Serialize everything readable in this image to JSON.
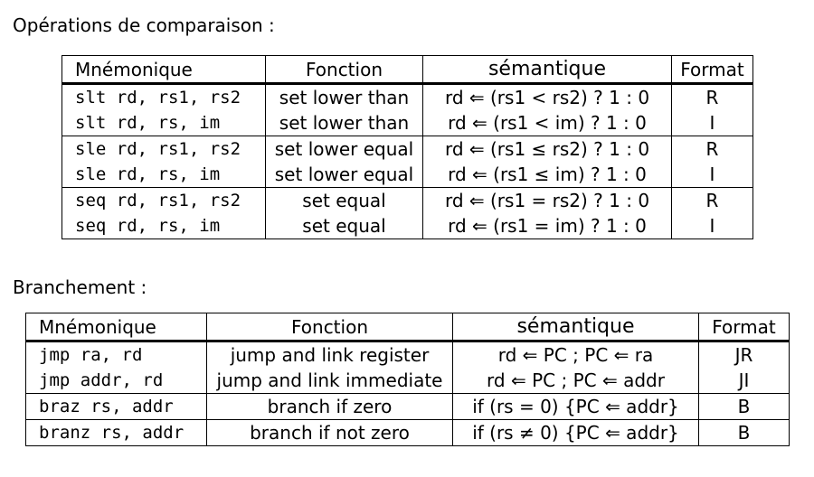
{
  "comparison": {
    "title": "Opérations de comparaison :",
    "headers": [
      "Mnémonique",
      "Fonction",
      "sémantique",
      "Format"
    ],
    "groups": [
      {
        "rows": [
          {
            "mnemonic": "slt rd, rs1, rs2",
            "function": "set lower than",
            "semantics": "rd ⇐ (rs1 < rs2) ? 1 : 0",
            "format": "R"
          },
          {
            "mnemonic": "slt rd, rs, im",
            "function": "set lower than",
            "semantics": "rd ⇐ (rs1 < im) ? 1 : 0",
            "format": "I"
          }
        ]
      },
      {
        "rows": [
          {
            "mnemonic": "sle rd, rs1, rs2",
            "function": "set lower equal",
            "semantics": "rd ⇐ (rs1 ≤ rs2) ? 1 : 0",
            "format": "R"
          },
          {
            "mnemonic": "sle rd, rs, im",
            "function": "set lower equal",
            "semantics": "rd ⇐ (rs1 ≤ im) ? 1 : 0",
            "format": "I"
          }
        ]
      },
      {
        "rows": [
          {
            "mnemonic": "seq rd, rs1, rs2",
            "function": "set equal",
            "semantics": "rd ⇐ (rs1 = rs2) ? 1 : 0",
            "format": "R"
          },
          {
            "mnemonic": "seq rd, rs, im",
            "function": "set equal",
            "semantics": "rd ⇐ (rs1 = im) ? 1 : 0",
            "format": "I"
          }
        ]
      }
    ]
  },
  "branch": {
    "title": "Branchement :",
    "headers": [
      "Mnémonique",
      "Fonction",
      "sémantique",
      "Format"
    ],
    "rows": [
      {
        "mnemonic": "jmp ra, rd",
        "function": "jump and link register",
        "semantics": "rd ⇐ PC ; PC ⇐ ra",
        "format": "JR"
      },
      {
        "mnemonic": "jmp addr, rd",
        "function": "jump and link immediate",
        "semantics": "rd ⇐ PC ; PC ⇐ addr",
        "format": "JI"
      },
      {
        "mnemonic": "braz rs, addr",
        "function": "branch if zero",
        "semantics": "if (rs = 0) {PC ⇐ addr}",
        "format": "B"
      },
      {
        "mnemonic": "branz rs, addr",
        "function": "branch if not zero",
        "semantics": "if (rs ≠ 0) {PC ⇐ addr}",
        "format": "B"
      }
    ]
  }
}
